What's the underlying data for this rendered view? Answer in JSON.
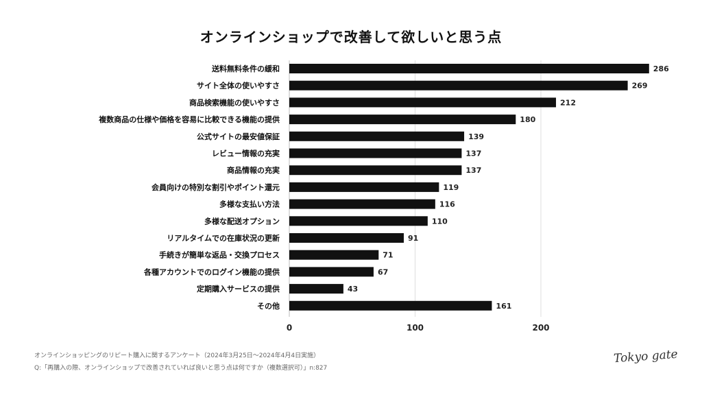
{
  "chart_data": {
    "type": "bar",
    "orientation": "horizontal",
    "title": "オンラインショップで改善して欲しいと思う点",
    "categories": [
      "送料無料条件の緩和",
      "サイト全体の使いやすさ",
      "商品検索機能の使いやすさ",
      "複数商品の仕様や価格を容易に比較できる機能の提供",
      "公式サイトの最安値保証",
      "レビュー情報の充実",
      "商品情報の充実",
      "会員向けの特別な割引やポイント還元",
      "多様な支払い方法",
      "多様な配送オプション",
      "リアルタイムでの在庫状況の更新",
      "手続きが簡単な返品・交換プロセス",
      "各種アカウントでのログイン機能の提供",
      "定期購入サービスの提供",
      "その他"
    ],
    "values": [
      286,
      269,
      212,
      180,
      139,
      137,
      137,
      119,
      116,
      110,
      91,
      71,
      67,
      43,
      161
    ],
    "xticks": [
      "0",
      "100",
      "200"
    ],
    "xlim": [
      0,
      286
    ],
    "grid": true,
    "bar_color": "#111111"
  },
  "footer": {
    "line1": "オンラインショッピングのリピート購入に関するアンケート（2024年3月25日〜2024年4月4日実施）",
    "line2": "Q:「再購入の際、オンラインショップで改善されていれば良いと思う点は何ですか（複数選択可）」n:827"
  },
  "logo": "Tokyo gate"
}
